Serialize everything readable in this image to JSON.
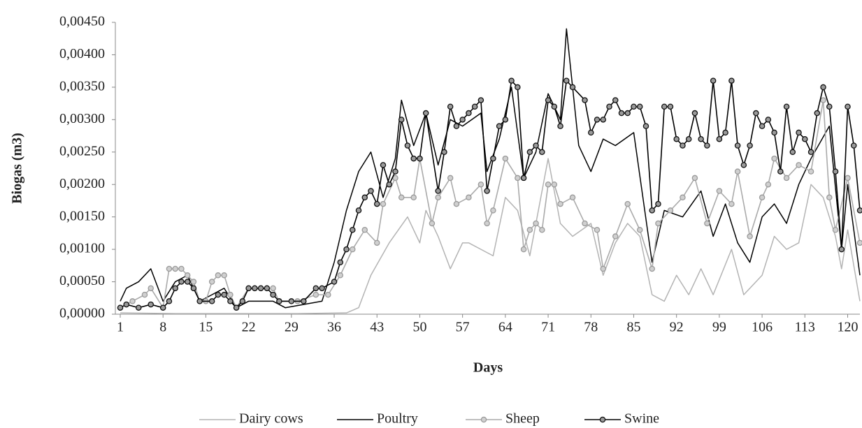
{
  "chart_data": {
    "type": "line",
    "x_label": "Days",
    "y_label": "Biogas (m3)",
    "xlim": [
      1,
      122
    ],
    "xticks": [
      1,
      8,
      15,
      22,
      29,
      36,
      43,
      50,
      57,
      64,
      71,
      78,
      85,
      92,
      99,
      106,
      113,
      120
    ],
    "ylim": [
      0,
      0.0045
    ],
    "yticks": [
      {
        "value": 0,
        "label": "0,00000"
      },
      {
        "value": 0.0005,
        "label": "0,00050"
      },
      {
        "value": 0.001,
        "label": "0,00100"
      },
      {
        "value": 0.0015,
        "label": "0,00150"
      },
      {
        "value": 0.002,
        "label": "0,00200"
      },
      {
        "value": 0.0025,
        "label": "0,00250"
      },
      {
        "value": 0.003,
        "label": "0,00300"
      },
      {
        "value": 0.0035,
        "label": "0,00350"
      },
      {
        "value": 0.004,
        "label": "0,00400"
      },
      {
        "value": 0.0045,
        "label": "0,00450"
      }
    ],
    "grid": false,
    "series": [
      {
        "name": "Dairy cows",
        "color": "#b3b3b3",
        "markers": false,
        "x": [
          1,
          10,
          20,
          30,
          38,
          40,
          42,
          45,
          48,
          50,
          51,
          53,
          55,
          57,
          58,
          60,
          62,
          64,
          66,
          68,
          71,
          73,
          75,
          78,
          80,
          82,
          84,
          86,
          88,
          90,
          92,
          94,
          96,
          98,
          101,
          103,
          106,
          108,
          110,
          112,
          114,
          116,
          118,
          119,
          120,
          122
        ],
        "values": [
          2e-05,
          1e-05,
          1e-05,
          1e-05,
          2e-05,
          0.0001,
          0.0006,
          0.0011,
          0.0015,
          0.0011,
          0.0016,
          0.0012,
          0.0007,
          0.0011,
          0.0011,
          0.001,
          0.0009,
          0.0018,
          0.0016,
          0.0009,
          0.0024,
          0.0014,
          0.0012,
          0.0014,
          0.0006,
          0.0011,
          0.0014,
          0.0012,
          0.0003,
          0.0002,
          0.0006,
          0.0003,
          0.0007,
          0.0003,
          0.001,
          0.0003,
          0.0006,
          0.0012,
          0.001,
          0.0011,
          0.002,
          0.0018,
          0.0012,
          0.0007,
          0.0013,
          0.0002
        ]
      },
      {
        "name": "Poultry",
        "color": "#000000",
        "markers": false,
        "x": [
          1,
          2,
          4,
          6,
          8,
          10,
          12,
          14,
          16,
          18,
          20,
          22,
          26,
          28,
          34,
          36,
          38,
          40,
          42,
          44,
          46,
          47,
          49,
          51,
          53,
          55,
          57,
          60,
          61,
          63,
          65,
          67,
          69,
          71,
          73,
          74,
          76,
          78,
          80,
          82,
          85,
          88,
          90,
          93,
          96,
          98,
          100,
          102,
          104,
          106,
          108,
          110,
          112,
          114,
          117,
          119,
          120,
          122
        ],
        "values": [
          0.0002,
          0.0004,
          0.0005,
          0.0007,
          0.0002,
          0.0005,
          0.0006,
          0.0002,
          0.0003,
          0.0004,
          0.0001,
          0.0002,
          0.0002,
          0.0001,
          0.0002,
          0.0008,
          0.0016,
          0.0022,
          0.0025,
          0.0018,
          0.0024,
          0.0033,
          0.0026,
          0.0031,
          0.0023,
          0.003,
          0.0029,
          0.0031,
          0.0022,
          0.0027,
          0.0035,
          0.0021,
          0.0025,
          0.0034,
          0.003,
          0.0044,
          0.0026,
          0.0022,
          0.0027,
          0.0026,
          0.0028,
          0.0008,
          0.0016,
          0.0015,
          0.0019,
          0.0012,
          0.0017,
          0.0011,
          0.0008,
          0.0015,
          0.0017,
          0.0014,
          0.002,
          0.0024,
          0.0029,
          0.001,
          0.002,
          0.0006
        ]
      },
      {
        "name": "Sheep",
        "color": "#aaaaaa",
        "markers": true,
        "x": [
          1,
          3,
          5,
          6,
          8,
          9,
          10,
          11,
          12,
          13,
          14,
          15,
          16,
          17,
          18,
          19,
          20,
          22,
          23,
          24,
          25,
          26,
          27,
          30,
          33,
          35,
          37,
          39,
          41,
          43,
          44,
          46,
          47,
          49,
          50,
          52,
          53,
          55,
          56,
          58,
          60,
          61,
          62,
          64,
          66,
          67,
          68,
          69,
          70,
          71,
          72,
          73,
          75,
          77,
          79,
          80,
          82,
          84,
          86,
          88,
          89,
          91,
          93,
          95,
          97,
          99,
          101,
          102,
          104,
          106,
          107,
          108,
          110,
          112,
          114,
          116,
          117,
          118,
          120,
          122
        ],
        "values": [
          0.0001,
          0.0002,
          0.0003,
          0.0004,
          0.0001,
          0.0007,
          0.0007,
          0.0007,
          0.0006,
          0.0005,
          0.0002,
          0.0002,
          0.0005,
          0.0006,
          0.0006,
          0.0003,
          0.0001,
          0.0004,
          0.0004,
          0.0004,
          0.0004,
          0.0004,
          0.0002,
          0.0002,
          0.0003,
          0.0003,
          0.0006,
          0.001,
          0.0013,
          0.0011,
          0.0017,
          0.0021,
          0.0018,
          0.0018,
          0.0024,
          0.0014,
          0.0018,
          0.0021,
          0.0017,
          0.0018,
          0.002,
          0.0014,
          0.0016,
          0.0024,
          0.0021,
          0.001,
          0.0013,
          0.0014,
          0.0013,
          0.002,
          0.002,
          0.0017,
          0.0018,
          0.0014,
          0.0013,
          0.0007,
          0.0012,
          0.0017,
          0.0013,
          0.0007,
          0.0014,
          0.0016,
          0.0018,
          0.0021,
          0.0014,
          0.0019,
          0.0017,
          0.0022,
          0.0012,
          0.0018,
          0.002,
          0.0024,
          0.0021,
          0.0023,
          0.0022,
          0.0033,
          0.0018,
          0.0013,
          0.0021,
          0.0011
        ]
      },
      {
        "name": "Swine",
        "color": "#000000",
        "markers": true,
        "x": [
          1,
          2,
          4,
          6,
          8,
          9,
          10,
          11,
          12,
          13,
          14,
          16,
          17,
          18,
          19,
          20,
          21,
          22,
          23,
          24,
          25,
          26,
          27,
          29,
          31,
          33,
          34,
          36,
          37,
          38,
          39,
          40,
          41,
          42,
          43,
          44,
          45,
          46,
          47,
          48,
          49,
          50,
          51,
          53,
          54,
          55,
          56,
          57,
          58,
          59,
          60,
          61,
          62,
          63,
          64,
          65,
          66,
          67,
          68,
          69,
          70,
          71,
          72,
          73,
          74,
          75,
          77,
          78,
          79,
          80,
          81,
          82,
          83,
          84,
          85,
          86,
          87,
          88,
          89,
          90,
          91,
          92,
          93,
          94,
          95,
          96,
          97,
          98,
          99,
          100,
          101,
          102,
          103,
          104,
          105,
          106,
          107,
          108,
          109,
          110,
          111,
          112,
          113,
          114,
          115,
          116,
          117,
          118,
          119,
          120,
          121,
          122
        ],
        "values": [
          0.0001,
          0.00015,
          0.0001,
          0.00015,
          0.0001,
          0.0002,
          0.0004,
          0.0005,
          0.0005,
          0.0004,
          0.0002,
          0.0002,
          0.0003,
          0.0003,
          0.0002,
          0.0001,
          0.0002,
          0.0004,
          0.0004,
          0.0004,
          0.0004,
          0.0003,
          0.0002,
          0.0002,
          0.0002,
          0.0004,
          0.0004,
          0.0005,
          0.0008,
          0.001,
          0.0013,
          0.0016,
          0.0018,
          0.0019,
          0.0017,
          0.0023,
          0.002,
          0.0022,
          0.003,
          0.0026,
          0.0024,
          0.0024,
          0.0031,
          0.0019,
          0.0025,
          0.0032,
          0.0029,
          0.003,
          0.0031,
          0.0032,
          0.0033,
          0.0019,
          0.0024,
          0.0029,
          0.003,
          0.0036,
          0.0035,
          0.0021,
          0.0025,
          0.0026,
          0.0025,
          0.0033,
          0.0032,
          0.0029,
          0.0036,
          0.0035,
          0.0033,
          0.0028,
          0.003,
          0.003,
          0.0032,
          0.0033,
          0.0031,
          0.0031,
          0.0032,
          0.0032,
          0.0029,
          0.0016,
          0.0017,
          0.0032,
          0.0032,
          0.0027,
          0.0026,
          0.0027,
          0.0031,
          0.0027,
          0.0026,
          0.0036,
          0.0027,
          0.0028,
          0.0036,
          0.0026,
          0.0023,
          0.0026,
          0.0031,
          0.0029,
          0.003,
          0.0028,
          0.0022,
          0.0032,
          0.0025,
          0.0028,
          0.0027,
          0.0025,
          0.0031,
          0.0035,
          0.0032,
          0.0022,
          0.001,
          0.0032,
          0.0026,
          0.0016
        ]
      }
    ]
  }
}
